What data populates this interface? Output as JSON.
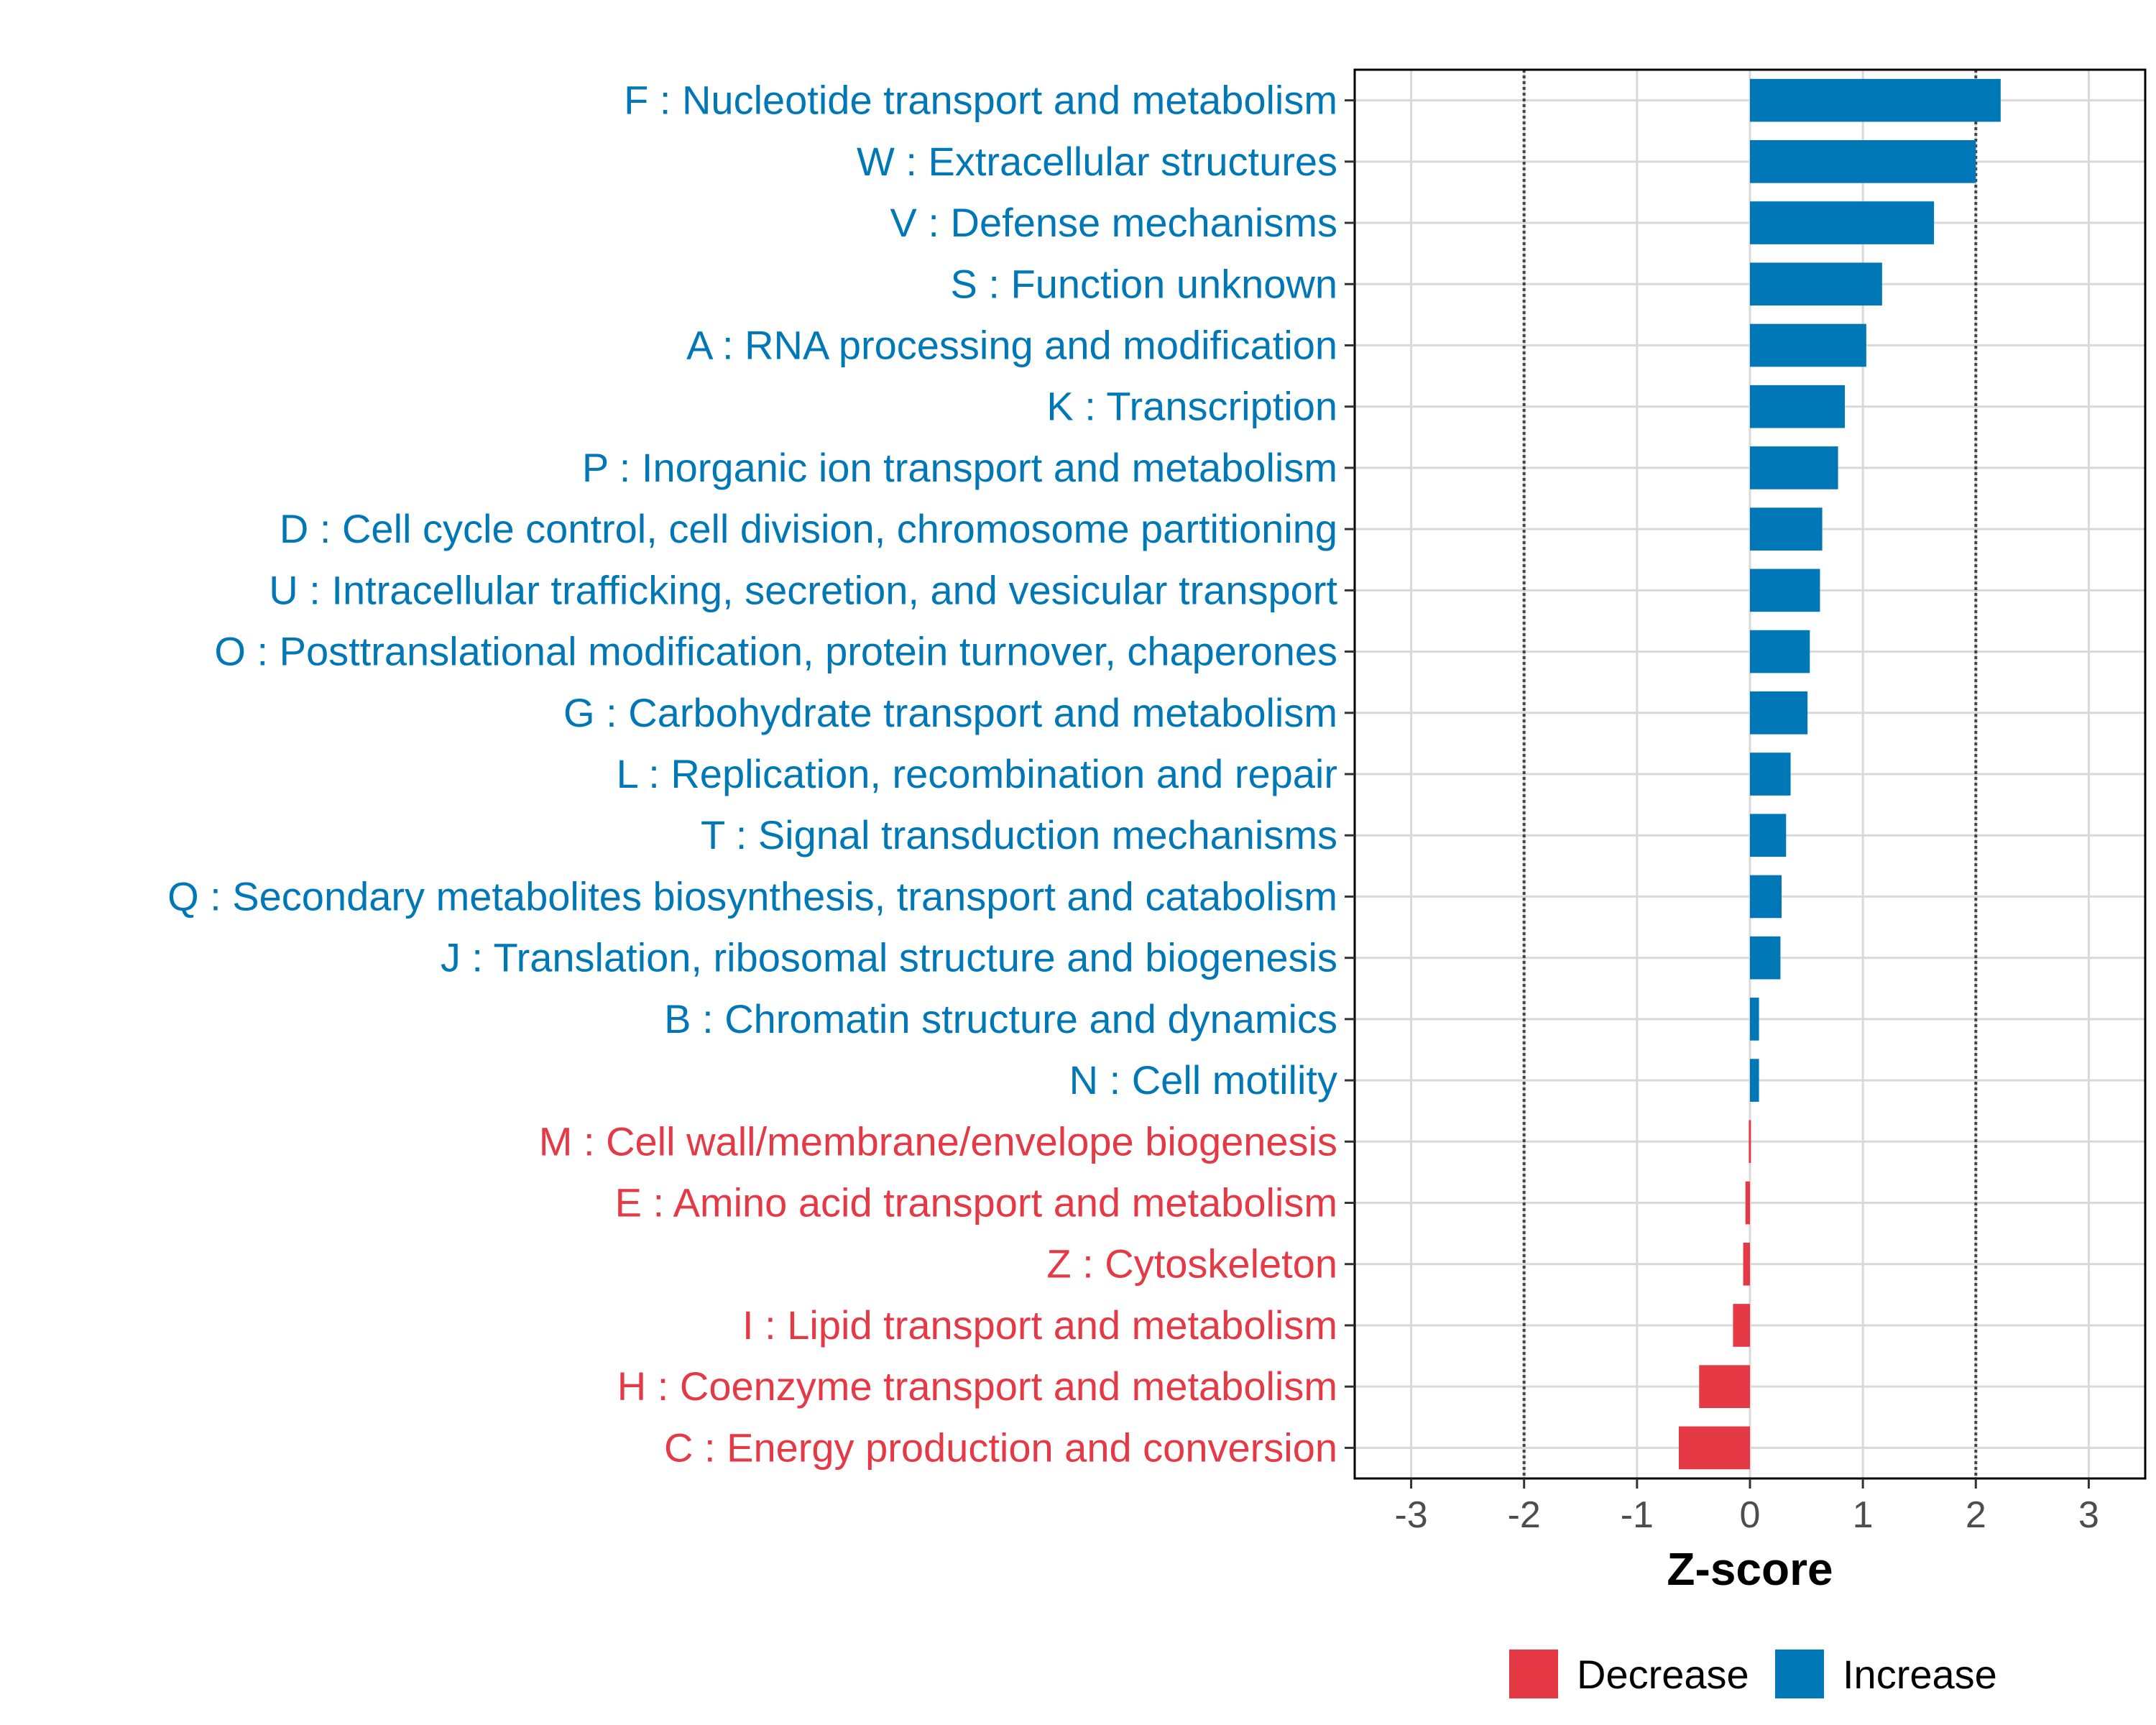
{
  "chart_data": {
    "type": "bar",
    "orientation": "horizontal",
    "title": "",
    "xlabel": "Z-score",
    "ylabel": "",
    "xlim": [
      -3.5,
      3.5
    ],
    "xticks": [
      -3,
      -2,
      -1,
      0,
      1,
      2,
      3
    ],
    "reference_lines": [
      -2,
      2
    ],
    "grid": true,
    "legend_position": "bottom",
    "colors": {
      "Decrease": "#e63946",
      "Increase": "#0077b6"
    },
    "legend": [
      {
        "key": "Decrease",
        "label": "Decrease"
      },
      {
        "key": "Increase",
        "label": "Increase"
      }
    ],
    "categories": [
      "F : Nucleotide transport and metabolism",
      "W : Extracellular structures",
      "V : Defense mechanisms",
      "S : Function unknown",
      "A : RNA processing and modification",
      "K : Transcription",
      "P : Inorganic ion transport and metabolism",
      "D : Cell cycle control, cell division, chromosome partitioning",
      "U : Intracellular trafficking, secretion, and vesicular transport",
      "O : Posttranslational modification, protein turnover, chaperones",
      "G : Carbohydrate transport and metabolism",
      "L : Replication, recombination and repair",
      "T : Signal transduction mechanisms",
      "Q : Secondary metabolites biosynthesis, transport and catabolism",
      "J : Translation, ribosomal structure and biogenesis",
      "B : Chromatin structure and dynamics",
      "N : Cell motility",
      "M : Cell wall/membrane/envelope biogenesis",
      "E : Amino acid transport and metabolism",
      "Z : Cytoskeleton",
      "I : Lipid transport and metabolism",
      "H : Coenzyme transport and metabolism",
      "C : Energy production and conversion"
    ],
    "values": [
      2.22,
      2.0,
      1.63,
      1.17,
      1.03,
      0.84,
      0.78,
      0.64,
      0.62,
      0.53,
      0.51,
      0.36,
      0.32,
      0.28,
      0.27,
      0.08,
      0.08,
      -0.01,
      -0.04,
      -0.06,
      -0.15,
      -0.45,
      -0.63
    ],
    "groups": [
      "Increase",
      "Increase",
      "Increase",
      "Increase",
      "Increase",
      "Increase",
      "Increase",
      "Increase",
      "Increase",
      "Increase",
      "Increase",
      "Increase",
      "Increase",
      "Increase",
      "Increase",
      "Increase",
      "Increase",
      "Decrease",
      "Decrease",
      "Decrease",
      "Decrease",
      "Decrease",
      "Decrease"
    ]
  }
}
